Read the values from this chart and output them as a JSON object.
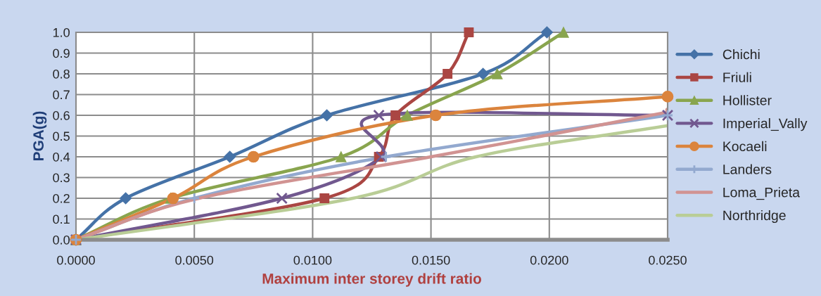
{
  "chart_data": {
    "type": "line",
    "xlabel": "Maximum inter storey drift ratio",
    "ylabel": "PGA(g)",
    "xlim": [
      0,
      0.025
    ],
    "ylim": [
      0,
      1.0
    ],
    "xticks": [
      {
        "value": 0,
        "label": "0.0000"
      },
      {
        "value": 0.005,
        "label": "0.0050"
      },
      {
        "value": 0.01,
        "label": "0.0100"
      },
      {
        "value": 0.015,
        "label": "0.0150"
      },
      {
        "value": 0.02,
        "label": "0.0200"
      },
      {
        "value": 0.025,
        "label": "0.0250"
      }
    ],
    "yticks": [
      {
        "value": 0,
        "label": "0.0"
      },
      {
        "value": 0.1,
        "label": "0.1"
      },
      {
        "value": 0.2,
        "label": "0.2"
      },
      {
        "value": 0.3,
        "label": "0.3"
      },
      {
        "value": 0.4,
        "label": "0.4"
      },
      {
        "value": 0.5,
        "label": "0.5"
      },
      {
        "value": 0.6,
        "label": "0.6"
      },
      {
        "value": 0.7,
        "label": "0.7"
      },
      {
        "value": 0.8,
        "label": "0.8"
      },
      {
        "value": 0.9,
        "label": "0.9"
      },
      {
        "value": 1.0,
        "label": "1.0"
      }
    ],
    "grid": true,
    "legend": "right",
    "series": [
      {
        "name": "Chichi",
        "color": "#4572a7",
        "marker": "diamond",
        "x": [
          0,
          0.0021,
          0.0065,
          0.0106,
          0.0172,
          0.0199
        ],
        "values": [
          0,
          0.2,
          0.4,
          0.6,
          0.8,
          1.0
        ]
      },
      {
        "name": "Friuli",
        "color": "#aa4643",
        "marker": "square",
        "x": [
          0,
          0.0105,
          0.0128,
          0.0135,
          0.0157,
          0.0166
        ],
        "values": [
          0,
          0.2,
          0.4,
          0.6,
          0.8,
          1.0
        ]
      },
      {
        "name": "Hollister",
        "color": "#89a54e",
        "marker": "triangle",
        "x": [
          0,
          0.004,
          0.0112,
          0.014,
          0.0178,
          0.0206
        ],
        "values": [
          0,
          0.2,
          0.4,
          0.6,
          0.8,
          1.0
        ]
      },
      {
        "name": "Imperial_Vally",
        "color": "#71588f",
        "marker": "cross",
        "x": [
          0,
          0.0087,
          0.0129,
          0.0128,
          0.025
        ],
        "values": [
          0,
          0.2,
          0.4,
          0.6,
          0.6
        ]
      },
      {
        "name": "Kocaeli",
        "color": "#db843d",
        "marker": "circle",
        "x": [
          0,
          0.0041,
          0.0075,
          0.0152,
          0.025
        ],
        "values": [
          0,
          0.2,
          0.4,
          0.6,
          0.69
        ]
      },
      {
        "name": "Landers",
        "color": "#93a9cf",
        "marker": "plus",
        "x": [
          0,
          0.005,
          0.0131,
          0.025
        ],
        "values": [
          0,
          0.2,
          0.4,
          0.6
        ]
      },
      {
        "name": "Loma_Prieta",
        "color": "#d19392",
        "marker": "none",
        "x": [
          0,
          0.0052,
          0.015,
          0.0243,
          0.025
        ],
        "values": [
          0,
          0.2,
          0.4,
          0.6,
          0.63
        ]
      },
      {
        "name": "Northridge",
        "color": "#b9cd96",
        "marker": "none",
        "x": [
          0,
          0.0117,
          0.0169,
          0.025
        ],
        "values": [
          0,
          0.2,
          0.4,
          0.55
        ]
      }
    ]
  }
}
